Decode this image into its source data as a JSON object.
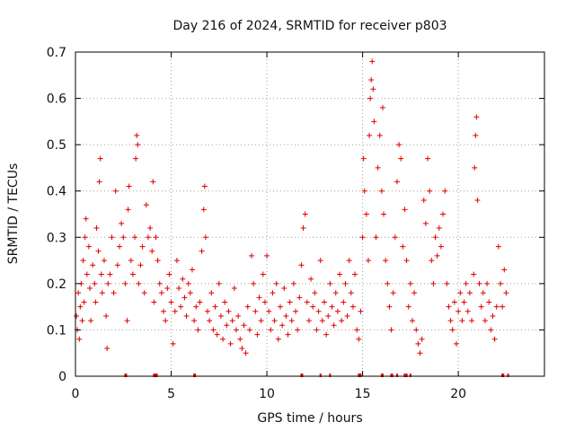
{
  "chart_data": {
    "type": "scatter",
    "title": "Day 216 of 2024, SRMTID for receiver p803",
    "xlabel": "GPS time / hours",
    "ylabel": "SRMTID / TECUs",
    "xlim": [
      0,
      24.5
    ],
    "ylim": [
      0,
      0.7
    ],
    "x_ticks": [
      0,
      5,
      10,
      15,
      20
    ],
    "x_tick_labels": [
      "0",
      "5",
      "10",
      "15",
      "20"
    ],
    "y_ticks": [
      0,
      0.1,
      0.2,
      0.3,
      0.4,
      0.5,
      0.6,
      0.7
    ],
    "y_tick_labels": [
      "0",
      "0.1",
      "0.2",
      "0.3",
      "0.4",
      "0.5",
      "0.6",
      "0.7"
    ],
    "grid": true,
    "marker": "+",
    "series_color": "#e00000",
    "series": [
      {
        "name": "SRMTID",
        "points": [
          [
            0.05,
            0.13
          ],
          [
            0.1,
            0.1
          ],
          [
            0.15,
            0.18
          ],
          [
            0.2,
            0.08
          ],
          [
            0.25,
            0.15
          ],
          [
            0.3,
            0.2
          ],
          [
            0.35,
            0.12
          ],
          [
            0.4,
            0.25
          ],
          [
            0.45,
            0.16
          ],
          [
            0.5,
            0.3
          ],
          [
            0.55,
            0.34
          ],
          [
            0.6,
            0.22
          ],
          [
            0.7,
            0.28
          ],
          [
            0.75,
            0.19
          ],
          [
            0.8,
            0.12
          ],
          [
            0.9,
            0.24
          ],
          [
            1.0,
            0.2
          ],
          [
            1.05,
            0.16
          ],
          [
            1.1,
            0.32
          ],
          [
            1.2,
            0.27
          ],
          [
            1.25,
            0.42
          ],
          [
            1.3,
            0.47
          ],
          [
            1.35,
            0.22
          ],
          [
            1.4,
            0.18
          ],
          [
            1.5,
            0.25
          ],
          [
            1.6,
            0.13
          ],
          [
            1.65,
            0.06
          ],
          [
            1.7,
            0.2
          ],
          [
            1.8,
            0.22
          ],
          [
            1.9,
            0.3
          ],
          [
            2.0,
            0.18
          ],
          [
            2.1,
            0.4
          ],
          [
            2.2,
            0.24
          ],
          [
            2.3,
            0.28
          ],
          [
            2.4,
            0.33
          ],
          [
            2.5,
            0.3
          ],
          [
            2.6,
            0.2
          ],
          [
            2.7,
            0.12
          ],
          [
            2.75,
            0.36
          ],
          [
            2.8,
            0.41
          ],
          [
            2.9,
            0.25
          ],
          [
            3.0,
            0.22
          ],
          [
            3.1,
            0.3
          ],
          [
            3.15,
            0.47
          ],
          [
            3.2,
            0.52
          ],
          [
            3.25,
            0.5
          ],
          [
            3.3,
            0.2
          ],
          [
            3.4,
            0.24
          ],
          [
            3.5,
            0.28
          ],
          [
            3.6,
            0.18
          ],
          [
            3.7,
            0.37
          ],
          [
            3.8,
            0.3
          ],
          [
            3.9,
            0.32
          ],
          [
            4.0,
            0.27
          ],
          [
            4.05,
            0.42
          ],
          [
            4.1,
            0.16
          ],
          [
            4.2,
            0.3
          ],
          [
            4.3,
            0.25
          ],
          [
            4.4,
            0.2
          ],
          [
            4.5,
            0.18
          ],
          [
            4.6,
            0.14
          ],
          [
            4.7,
            0.12
          ],
          [
            4.8,
            0.19
          ],
          [
            4.9,
            0.22
          ],
          [
            5.0,
            0.16
          ],
          [
            5.1,
            0.07
          ],
          [
            5.2,
            0.14
          ],
          [
            5.3,
            0.25
          ],
          [
            5.4,
            0.19
          ],
          [
            5.5,
            0.15
          ],
          [
            5.6,
            0.21
          ],
          [
            5.7,
            0.17
          ],
          [
            5.8,
            0.13
          ],
          [
            5.9,
            0.2
          ],
          [
            6.0,
            0.18
          ],
          [
            6.1,
            0.23
          ],
          [
            6.2,
            0.12
          ],
          [
            6.3,
            0.15
          ],
          [
            6.4,
            0.1
          ],
          [
            6.5,
            0.16
          ],
          [
            6.6,
            0.27
          ],
          [
            6.7,
            0.36
          ],
          [
            6.75,
            0.41
          ],
          [
            6.8,
            0.3
          ],
          [
            6.9,
            0.14
          ],
          [
            7.0,
            0.12
          ],
          [
            7.1,
            0.18
          ],
          [
            7.2,
            0.1
          ],
          [
            7.3,
            0.15
          ],
          [
            7.4,
            0.09
          ],
          [
            7.5,
            0.2
          ],
          [
            7.6,
            0.13
          ],
          [
            7.7,
            0.08
          ],
          [
            7.8,
            0.16
          ],
          [
            7.9,
            0.11
          ],
          [
            8.0,
            0.14
          ],
          [
            8.1,
            0.07
          ],
          [
            8.2,
            0.12
          ],
          [
            8.3,
            0.19
          ],
          [
            8.4,
            0.1
          ],
          [
            8.5,
            0.13
          ],
          [
            8.6,
            0.08
          ],
          [
            8.7,
            0.06
          ],
          [
            8.8,
            0.11
          ],
          [
            8.9,
            0.05
          ],
          [
            9.0,
            0.15
          ],
          [
            9.1,
            0.1
          ],
          [
            9.2,
            0.26
          ],
          [
            9.3,
            0.2
          ],
          [
            9.4,
            0.14
          ],
          [
            9.5,
            0.09
          ],
          [
            9.6,
            0.17
          ],
          [
            9.7,
            0.12
          ],
          [
            9.8,
            0.22
          ],
          [
            9.9,
            0.16
          ],
          [
            10.0,
            0.26
          ],
          [
            10.1,
            0.14
          ],
          [
            10.2,
            0.1
          ],
          [
            10.3,
            0.18
          ],
          [
            10.4,
            0.12
          ],
          [
            10.5,
            0.2
          ],
          [
            10.6,
            0.08
          ],
          [
            10.7,
            0.15
          ],
          [
            10.8,
            0.11
          ],
          [
            10.9,
            0.19
          ],
          [
            11.0,
            0.13
          ],
          [
            11.1,
            0.09
          ],
          [
            11.2,
            0.16
          ],
          [
            11.3,
            0.12
          ],
          [
            11.4,
            0.2
          ],
          [
            11.5,
            0.14
          ],
          [
            11.6,
            0.1
          ],
          [
            11.7,
            0.17
          ],
          [
            11.8,
            0.24
          ],
          [
            11.9,
            0.32
          ],
          [
            12.0,
            0.35
          ],
          [
            12.1,
            0.16
          ],
          [
            12.2,
            0.12
          ],
          [
            12.3,
            0.21
          ],
          [
            12.4,
            0.15
          ],
          [
            12.5,
            0.18
          ],
          [
            12.6,
            0.1
          ],
          [
            12.7,
            0.14
          ],
          [
            12.8,
            0.25
          ],
          [
            12.9,
            0.12
          ],
          [
            13.0,
            0.16
          ],
          [
            13.1,
            0.09
          ],
          [
            13.2,
            0.13
          ],
          [
            13.3,
            0.2
          ],
          [
            13.4,
            0.15
          ],
          [
            13.5,
            0.11
          ],
          [
            13.6,
            0.18
          ],
          [
            13.7,
            0.14
          ],
          [
            13.8,
            0.22
          ],
          [
            13.9,
            0.12
          ],
          [
            14.0,
            0.16
          ],
          [
            14.1,
            0.2
          ],
          [
            14.2,
            0.13
          ],
          [
            14.3,
            0.25
          ],
          [
            14.4,
            0.18
          ],
          [
            14.5,
            0.15
          ],
          [
            14.6,
            0.22
          ],
          [
            14.7,
            0.1
          ],
          [
            14.8,
            0.08
          ],
          [
            14.9,
            0.14
          ],
          [
            15.0,
            0.3
          ],
          [
            15.05,
            0.47
          ],
          [
            15.1,
            0.4
          ],
          [
            15.2,
            0.35
          ],
          [
            15.3,
            0.25
          ],
          [
            15.35,
            0.52
          ],
          [
            15.4,
            0.6
          ],
          [
            15.45,
            0.64
          ],
          [
            15.5,
            0.68
          ],
          [
            15.55,
            0.62
          ],
          [
            15.6,
            0.55
          ],
          [
            15.7,
            0.3
          ],
          [
            15.8,
            0.45
          ],
          [
            15.9,
            0.52
          ],
          [
            16.0,
            0.4
          ],
          [
            16.05,
            0.58
          ],
          [
            16.1,
            0.35
          ],
          [
            16.2,
            0.25
          ],
          [
            16.3,
            0.2
          ],
          [
            16.4,
            0.15
          ],
          [
            16.5,
            0.1
          ],
          [
            16.6,
            0.18
          ],
          [
            16.7,
            0.3
          ],
          [
            16.8,
            0.42
          ],
          [
            16.9,
            0.5
          ],
          [
            17.0,
            0.47
          ],
          [
            17.1,
            0.28
          ],
          [
            17.2,
            0.36
          ],
          [
            17.3,
            0.25
          ],
          [
            17.4,
            0.15
          ],
          [
            17.5,
            0.2
          ],
          [
            17.6,
            0.12
          ],
          [
            17.7,
            0.18
          ],
          [
            17.8,
            0.1
          ],
          [
            17.9,
            0.07
          ],
          [
            18.0,
            0.05
          ],
          [
            18.1,
            0.08
          ],
          [
            18.2,
            0.38
          ],
          [
            18.3,
            0.33
          ],
          [
            18.4,
            0.47
          ],
          [
            18.5,
            0.4
          ],
          [
            18.6,
            0.25
          ],
          [
            18.7,
            0.2
          ],
          [
            18.8,
            0.3
          ],
          [
            18.9,
            0.26
          ],
          [
            19.0,
            0.32
          ],
          [
            19.1,
            0.28
          ],
          [
            19.2,
            0.35
          ],
          [
            19.3,
            0.4
          ],
          [
            19.4,
            0.2
          ],
          [
            19.5,
            0.15
          ],
          [
            19.6,
            0.12
          ],
          [
            19.7,
            0.1
          ],
          [
            19.8,
            0.16
          ],
          [
            19.9,
            0.07
          ],
          [
            20.0,
            0.14
          ],
          [
            20.1,
            0.18
          ],
          [
            20.2,
            0.12
          ],
          [
            20.3,
            0.16
          ],
          [
            20.4,
            0.2
          ],
          [
            20.5,
            0.14
          ],
          [
            20.6,
            0.18
          ],
          [
            20.7,
            0.12
          ],
          [
            20.8,
            0.22
          ],
          [
            20.85,
            0.45
          ],
          [
            20.9,
            0.52
          ],
          [
            20.95,
            0.56
          ],
          [
            21.0,
            0.38
          ],
          [
            21.1,
            0.2
          ],
          [
            21.2,
            0.15
          ],
          [
            21.3,
            0.18
          ],
          [
            21.4,
            0.12
          ],
          [
            21.5,
            0.2
          ],
          [
            21.6,
            0.16
          ],
          [
            21.7,
            0.1
          ],
          [
            21.8,
            0.13
          ],
          [
            21.9,
            0.08
          ],
          [
            22.0,
            0.15
          ],
          [
            22.1,
            0.28
          ],
          [
            22.2,
            0.2
          ],
          [
            22.3,
            0.15
          ],
          [
            22.4,
            0.23
          ],
          [
            22.5,
            0.18
          ]
        ]
      }
    ],
    "gap_markers_x": [
      2.6,
      2.65,
      4.1,
      4.15,
      4.2,
      4.25,
      6.2,
      6.25,
      11.8,
      11.85,
      12.8,
      13.3,
      14.8,
      14.85,
      14.9,
      16.0,
      16.05,
      16.5,
      16.55,
      16.8,
      17.2,
      17.3,
      17.5,
      22.3,
      22.35,
      22.6
    ]
  }
}
